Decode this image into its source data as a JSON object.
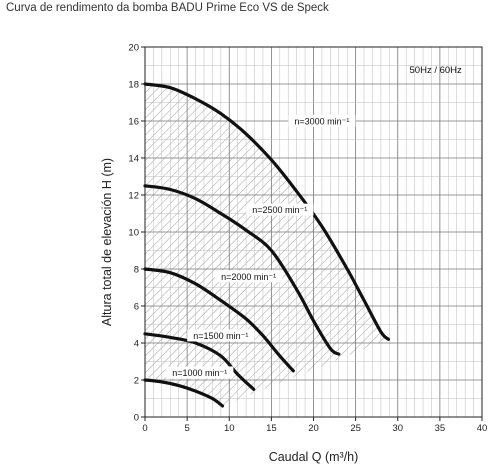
{
  "caption": "Curva de rendimento da bomba BADU Prime Eco VS de Speck",
  "chart_data": {
    "type": "line",
    "title": "Curva de rendimento da bomba BADU Prime Eco VS de Speck",
    "xlabel": "Caudal  Q (m³/h)",
    "ylabel": "Altura total de elevación H (m)",
    "xlim": [
      0,
      40
    ],
    "ylim": [
      0,
      20
    ],
    "x_ticks": [
      0,
      5,
      10,
      15,
      20,
      25,
      30,
      35,
      40
    ],
    "y_ticks": [
      0,
      2,
      4,
      6,
      8,
      10,
      12,
      14,
      16,
      18,
      20
    ],
    "x_tick_labels": [
      "0",
      "5",
      "10",
      "15",
      "20",
      "25",
      "30",
      "35",
      "40"
    ],
    "y_tick_labels": [
      "0",
      "2",
      "4",
      "6",
      "8",
      "10",
      "12",
      "14",
      "16",
      "18",
      "20"
    ],
    "grid": true,
    "annotation": "50Hz / 60Hz",
    "shaded_region": "operating range between n=1000 and n=3000 curves",
    "series": [
      {
        "label": "n=3000 min⁻¹",
        "x": [
          0,
          3,
          6,
          9,
          12,
          15,
          18,
          21,
          24,
          26,
          28,
          28.9
        ],
        "y": [
          18.0,
          17.8,
          17.2,
          16.4,
          15.3,
          13.9,
          12.2,
          10.3,
          8.0,
          6.3,
          4.6,
          4.2
        ]
      },
      {
        "label": "n=2500 min⁻¹",
        "x": [
          0,
          3,
          6,
          9,
          12,
          15,
          18,
          20,
          22,
          23
        ],
        "y": [
          12.5,
          12.3,
          11.8,
          11.0,
          10.1,
          9.0,
          6.9,
          5.2,
          3.7,
          3.4
        ]
      },
      {
        "label": "n=2000 min⁻¹",
        "x": [
          0,
          3,
          6,
          9,
          12,
          14,
          16,
          17.6
        ],
        "y": [
          8.0,
          7.8,
          7.2,
          6.3,
          5.3,
          4.4,
          3.3,
          2.5
        ]
      },
      {
        "label": "n=1500 min⁻¹",
        "x": [
          0,
          3,
          6,
          9,
          11,
          12.9
        ],
        "y": [
          4.5,
          4.3,
          4.0,
          3.3,
          2.3,
          1.5
        ]
      },
      {
        "label": "n=1000 min⁻¹",
        "x": [
          0,
          2,
          4,
          6,
          8,
          9.2
        ],
        "y": [
          2.0,
          1.9,
          1.7,
          1.4,
          1.0,
          0.6
        ]
      }
    ]
  }
}
